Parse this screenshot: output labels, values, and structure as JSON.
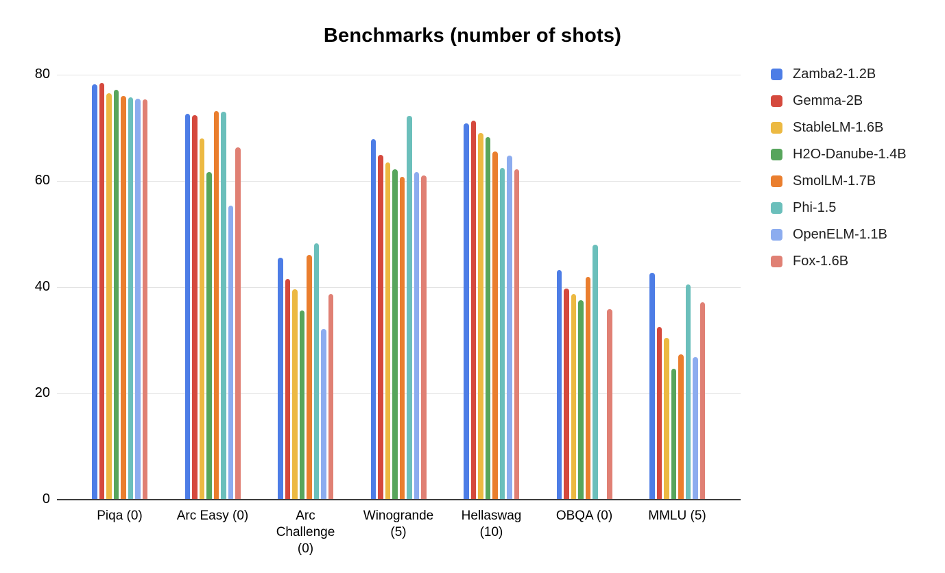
{
  "chart_data": {
    "type": "bar",
    "title": "Benchmarks (number of shots)",
    "xlabel": "",
    "ylabel": "",
    "ylim": [
      0,
      80
    ],
    "yticks": [
      0,
      20,
      40,
      60,
      80
    ],
    "grid": true,
    "legend_position": "right",
    "categories": [
      "Piqa (0)",
      "Arc Easy (0)",
      "Arc\nChallenge\n(0)",
      "Winogrande\n(5)",
      "Hellaswag\n(10)",
      "OBQA (0)",
      "MMLU (5)"
    ],
    "series": [
      {
        "name": "Zamba2-1.2B",
        "color": "#4D7DE6",
        "values": [
          78.2,
          72.6,
          45.5,
          67.9,
          70.8,
          43.2,
          42.7
        ]
      },
      {
        "name": "Gemma-2B",
        "color": "#D5493D",
        "values": [
          78.4,
          72.4,
          41.5,
          64.9,
          71.3,
          39.7,
          32.5
        ]
      },
      {
        "name": "StableLM-1.6B",
        "color": "#ECB942",
        "values": [
          76.5,
          68.0,
          39.6,
          63.5,
          69.0,
          38.7,
          30.4
        ]
      },
      {
        "name": "H2O-Danube-1.4B",
        "color": "#57A55C",
        "values": [
          77.1,
          61.7,
          35.6,
          62.2,
          68.3,
          37.5,
          24.6
        ]
      },
      {
        "name": "SmolLM-1.7B",
        "color": "#EA7E2E",
        "values": [
          76.0,
          73.2,
          46.1,
          60.8,
          65.6,
          42.0,
          27.4
        ]
      },
      {
        "name": "Phi-1.5",
        "color": "#6BBFBB",
        "values": [
          75.8,
          73.0,
          48.2,
          72.3,
          62.4,
          48.0,
          40.5
        ]
      },
      {
        "name": "OpenELM-1.1B",
        "color": "#8CACEF",
        "values": [
          75.5,
          55.4,
          32.1,
          61.7,
          64.8,
          null,
          26.8
        ]
      },
      {
        "name": "Fox-1.6B",
        "color": "#E08074",
        "values": [
          75.4,
          66.3,
          38.7,
          61.0,
          62.2,
          35.9,
          37.2
        ]
      }
    ],
    "axis_colors": {
      "gridline": "#e3e3e3",
      "baseline": "#3d3d3d",
      "text": "#000000"
    }
  }
}
